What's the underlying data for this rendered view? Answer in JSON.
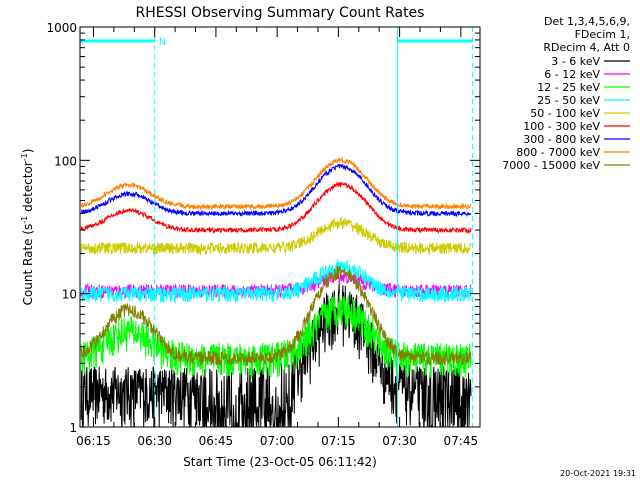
{
  "chart_data": {
    "type": "line",
    "title": "RHESSI Observing Summary Count Rates",
    "xlabel": "Start Time (23-Oct-05 06:11:42)",
    "ylabel_main": "Count Rate (s",
    "ylabel_sup1": "-1",
    "ylabel_mid": " detector",
    "ylabel_sup2": "-1",
    "ylabel_end": ")",
    "y_scale": "log",
    "ylim": [
      1,
      1000
    ],
    "xlim_minutes": [
      0,
      98
    ],
    "y_ticks": [
      {
        "value": 1,
        "label": "1"
      },
      {
        "value": 10,
        "label": "10"
      },
      {
        "value": 100,
        "label": "100"
      },
      {
        "value": 1000,
        "label": "1000"
      }
    ],
    "x_ticks": [
      {
        "minute": 3.3,
        "label": "06:15"
      },
      {
        "minute": 18.3,
        "label": "06:30"
      },
      {
        "minute": 33.3,
        "label": "06:45"
      },
      {
        "minute": 48.3,
        "label": "07:00"
      },
      {
        "minute": 63.3,
        "label": "07:15"
      },
      {
        "minute": 78.3,
        "label": "07:30"
      },
      {
        "minute": 93.3,
        "label": "07:45"
      }
    ],
    "night_markers": [
      {
        "start": 0,
        "end": 18.3,
        "label": "N"
      },
      {
        "start": 77.8,
        "end": 96.2,
        "label": ""
      }
    ],
    "legend_header": [
      "Det 1,3,4,5,6,9,",
      "FDecim 1,",
      "RDecim 4, Att 0"
    ],
    "series": [
      {
        "name": "3 - 6 keV",
        "color": "#000000",
        "base": 1.9,
        "peak": 8.0,
        "noise": 0.5,
        "dips": true
      },
      {
        "name": "6 - 12 keV",
        "color": "#ff00ff",
        "base": 10.5,
        "peak": 13.5,
        "noise": 0.12
      },
      {
        "name": "12 - 25 keV",
        "color": "#00ff00",
        "base": 3.3,
        "peak": 8.0,
        "noise": 0.3,
        "hump": 1.6
      },
      {
        "name": "25 - 50 keV",
        "color": "#00ffff",
        "base": 10.0,
        "peak": 16.0,
        "noise": 0.14
      },
      {
        "name": "50 - 100 keV",
        "color": "#cccc00",
        "base": 22.0,
        "peak": 34.0,
        "noise": 0.1
      },
      {
        "name": "100 - 300 keV",
        "color": "#ff0000",
        "base": 30.0,
        "peak": 66.0,
        "hump": 1.4,
        "noise": 0.04
      },
      {
        "name": "300 - 800 keV",
        "color": "#0000ff",
        "base": 40.0,
        "peak": 90.0,
        "hump": 1.4,
        "noise": 0.04
      },
      {
        "name": "800 - 7000 keV",
        "color": "#ff8000",
        "base": 45.0,
        "peak": 100.0,
        "hump": 1.45,
        "noise": 0.04
      },
      {
        "name": "7000 - 15000 keV",
        "color": "#808000",
        "base": 3.3,
        "peak": 14.5,
        "hump": 2.3,
        "noise": 0.12
      }
    ],
    "grid": false,
    "legend_position": "right"
  },
  "footer_timestamp": "20-Oct-2021 19:31"
}
